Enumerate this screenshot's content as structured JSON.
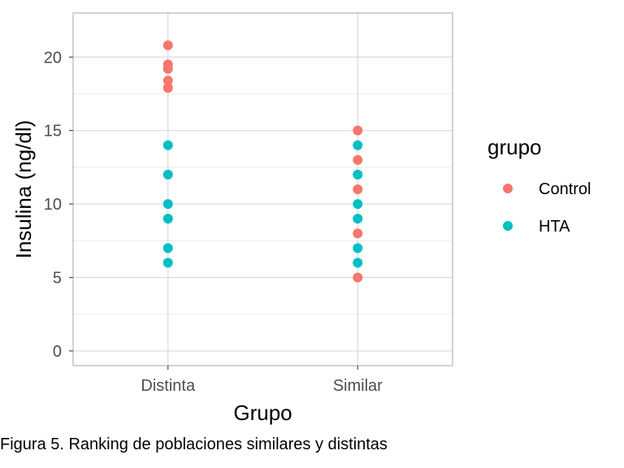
{
  "chart_data": {
    "type": "scatter",
    "xlabel": "Grupo",
    "ylabel": "Insulina (ng/dl)",
    "categories": [
      "Distinta",
      "Similar"
    ],
    "ylim": [
      -1,
      23
    ],
    "yticks": [
      0,
      5,
      10,
      15,
      20
    ],
    "grid": true,
    "legend": {
      "title": "grupo",
      "position": "right",
      "entries": [
        "Control",
        "HTA"
      ]
    },
    "series": [
      {
        "name": "Control",
        "color": "#F8766D",
        "points": [
          {
            "x": "Distinta",
            "y": 20.8
          },
          {
            "x": "Distinta",
            "y": 19.5
          },
          {
            "x": "Distinta",
            "y": 19.2
          },
          {
            "x": "Distinta",
            "y": 18.4
          },
          {
            "x": "Distinta",
            "y": 17.9
          },
          {
            "x": "Similar",
            "y": 15
          },
          {
            "x": "Similar",
            "y": 13
          },
          {
            "x": "Similar",
            "y": 12
          },
          {
            "x": "Similar",
            "y": 11
          },
          {
            "x": "Similar",
            "y": 8
          },
          {
            "x": "Similar",
            "y": 5
          }
        ]
      },
      {
        "name": "HTA",
        "color": "#00BFC4",
        "points": [
          {
            "x": "Distinta",
            "y": 14
          },
          {
            "x": "Distinta",
            "y": 12
          },
          {
            "x": "Distinta",
            "y": 10
          },
          {
            "x": "Distinta",
            "y": 9
          },
          {
            "x": "Distinta",
            "y": 7
          },
          {
            "x": "Distinta",
            "y": 6
          },
          {
            "x": "Similar",
            "y": 14
          },
          {
            "x": "Similar",
            "y": 12
          },
          {
            "x": "Similar",
            "y": 10
          },
          {
            "x": "Similar",
            "y": 9
          },
          {
            "x": "Similar",
            "y": 7
          },
          {
            "x": "Similar",
            "y": 6
          }
        ]
      }
    ]
  },
  "caption": "Figura 5. Ranking de poblaciones similares y distintas"
}
